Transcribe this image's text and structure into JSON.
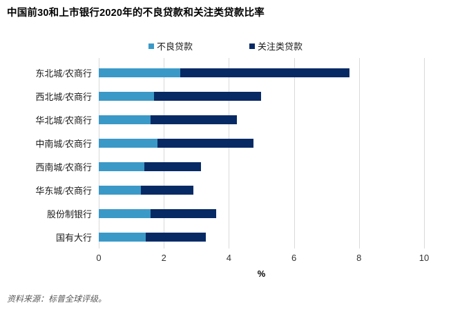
{
  "title": "中国前30和上市银行2020年的不良贷款和关注类贷款比率",
  "source_note": "资料来源：标普全球评级。",
  "colors": {
    "npl": "#3B99C7",
    "special_mention": "#072A65",
    "gridline": "#D9D9D9",
    "title_text": "#000000",
    "label_text": "#1A1A1A",
    "source_text": "#595959",
    "background": "#FFFFFF"
  },
  "chart_data": {
    "type": "bar",
    "orientation": "horizontal",
    "stacked": true,
    "title": "中国前30和上市银行2020年的不良贷款和关注类贷款比率",
    "categories": [
      "东北城/农商行",
      "西北城/农商行",
      "华北城/农商行",
      "中南城/农商行",
      "西南城/农商行",
      "华东城/农商行",
      "股份制银行",
      "国有大行"
    ],
    "series": [
      {
        "name": "不良贷款",
        "color": "#3B99C7",
        "values": [
          2.5,
          1.7,
          1.6,
          1.8,
          1.4,
          1.3,
          1.6,
          1.45
        ]
      },
      {
        "name": "关注类贷款",
        "color": "#072A65",
        "values": [
          5.2,
          3.3,
          2.65,
          2.95,
          1.75,
          1.6,
          2.0,
          1.85
        ]
      }
    ],
    "totals": [
      7.7,
      5.0,
      4.25,
      4.75,
      3.15,
      2.9,
      3.6,
      3.3
    ],
    "xlabel": "%",
    "xlim": [
      0,
      10
    ],
    "xticks": [
      0,
      2,
      4,
      6,
      8,
      10
    ],
    "legend_position": "top-center",
    "grid": "vertical"
  }
}
